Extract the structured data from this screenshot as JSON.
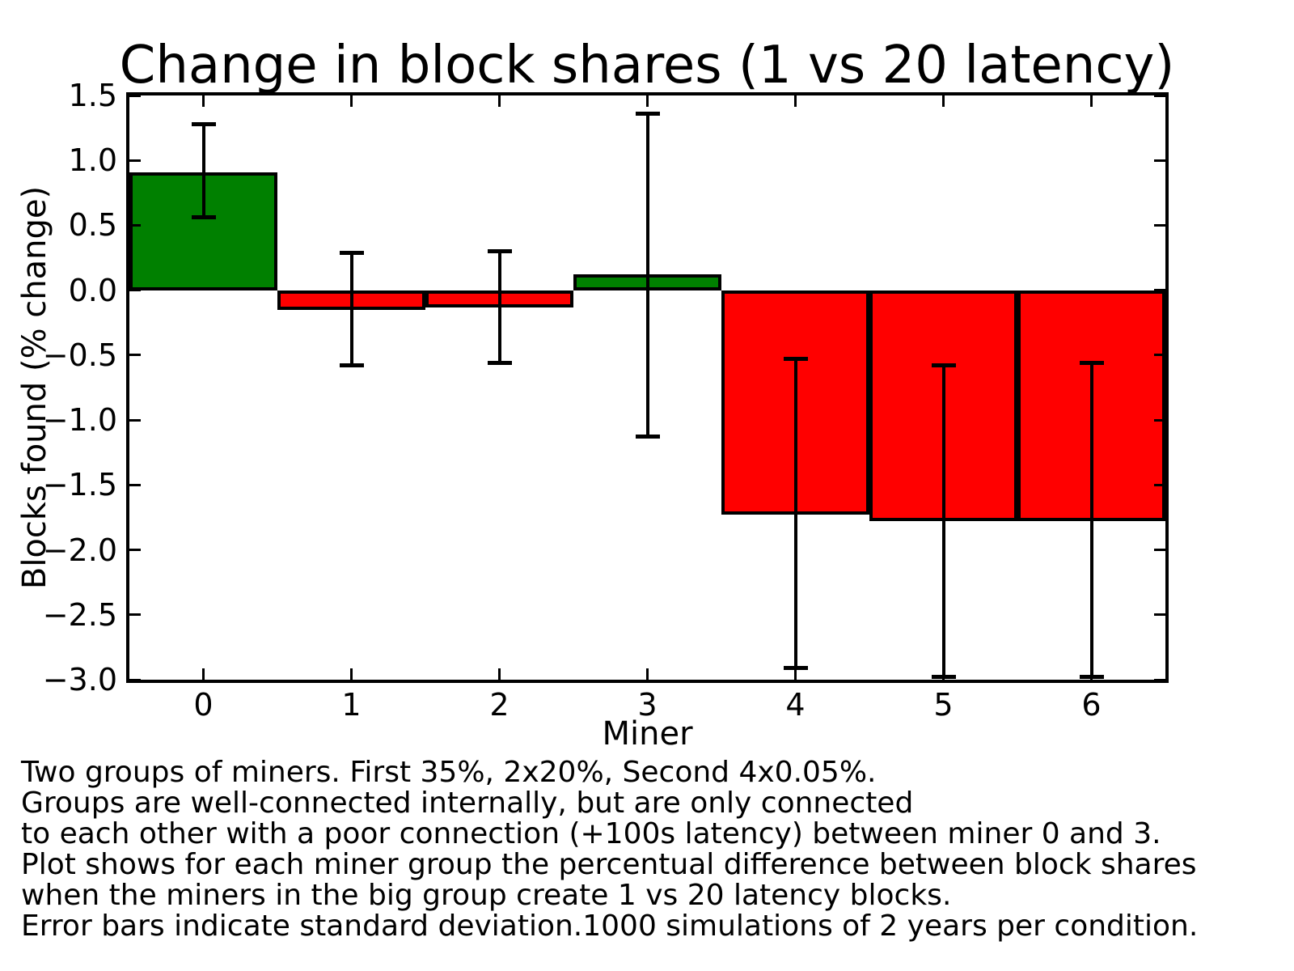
{
  "chart_data": {
    "type": "bar",
    "title": "Change in block shares (1 vs 20 latency)",
    "xlabel": "Miner",
    "ylabel": "Blocks found (% change)",
    "categories": [
      0,
      1,
      2,
      3,
      4,
      5,
      6
    ],
    "values": [
      0.91,
      -0.15,
      -0.13,
      0.12,
      -1.73,
      -1.78,
      -1.78
    ],
    "error_high": [
      1.28,
      0.29,
      0.3,
      1.36,
      -0.53,
      -0.58,
      -0.56
    ],
    "error_low": [
      0.56,
      -0.58,
      -0.56,
      -1.13,
      -2.91,
      -2.98,
      -2.98
    ],
    "bar_colors": [
      "#008000",
      "#ff0000",
      "#ff0000",
      "#008000",
      "#ff0000",
      "#ff0000",
      "#ff0000"
    ],
    "xlim": [
      -0.5,
      6.5
    ],
    "ylim": [
      -3.0,
      1.5
    ],
    "yticks": [
      1.5,
      1.0,
      0.5,
      0.0,
      -0.5,
      -1.0,
      -1.5,
      -2.0,
      -2.5,
      -3.0
    ],
    "ytick_labels": [
      "1.5",
      "1.0",
      "0.5",
      "0.0",
      "−0.5",
      "−1.0",
      "−1.5",
      "−2.0",
      "−2.5",
      "−3.0"
    ],
    "xticks": [
      0,
      1,
      2,
      3,
      4,
      5,
      6
    ],
    "xtick_labels": [
      "0",
      "1",
      "2",
      "3",
      "4",
      "5",
      "6"
    ],
    "grid": false,
    "legend": null,
    "error_bar_note": "error bars indicate standard deviation",
    "colors": {
      "positive_bar": "#008000",
      "negative_bar": "#ff0000",
      "axes_and_errorbars": "#000000",
      "background": "#ffffff"
    }
  },
  "caption_lines": [
    "Two groups of miners. First 35%, 2x20%, Second 4x0.05%.",
    "Groups are well-connected internally, but are only connected",
    "to each other with a poor connection (+100s latency) between miner 0 and 3.",
    "Plot shows for each miner group the percentual difference between block shares",
    "when the miners in the big group create 1 vs 20 latency blocks.",
    "Error bars indicate standard deviation.1000 simulations of 2 years per condition."
  ]
}
